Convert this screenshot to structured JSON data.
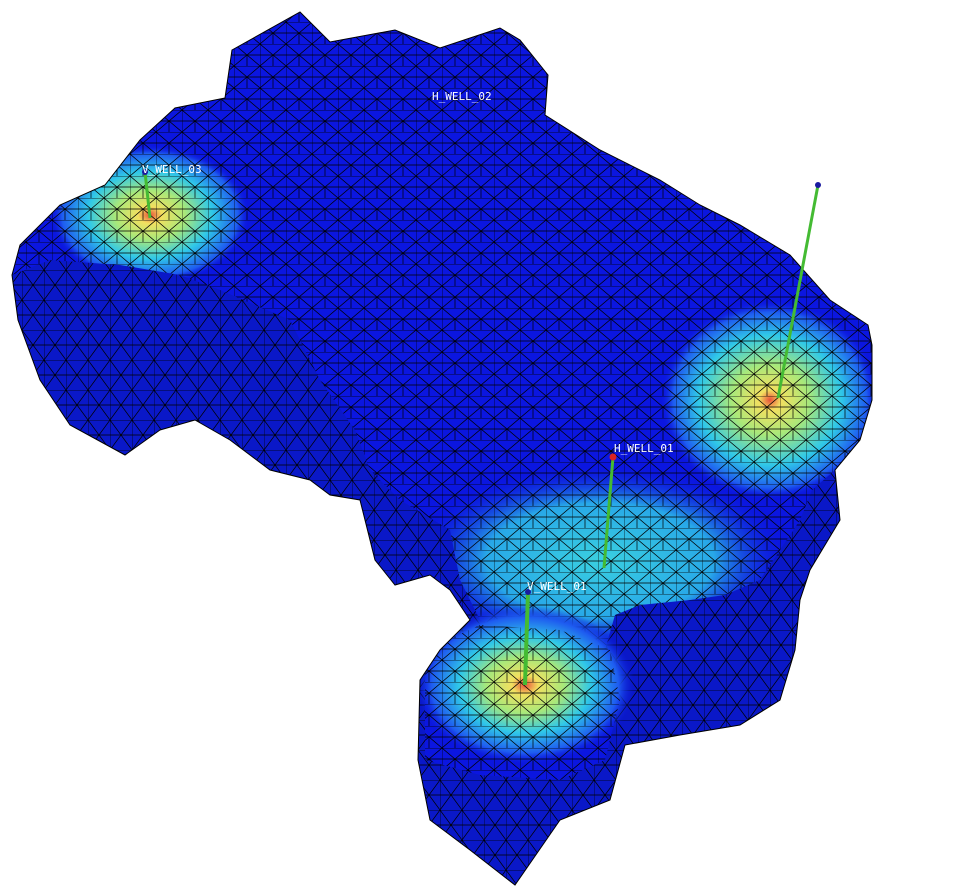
{
  "scene": {
    "background_color": "#ffffff",
    "mesh_edge_color": "#000000",
    "colormap": [
      "#0a14d8",
      "#1e5cf0",
      "#30c8e8",
      "#a8e87a",
      "#f2e060",
      "#e8503a"
    ],
    "well_trajectory_color": "#44bb33",
    "well_head_color_vertical": "#1a1aa0",
    "well_head_color_horizontal": "#dd2222",
    "label_color": "#ffffff"
  },
  "wells": [
    {
      "id": "h_well_02",
      "label": "H_WELL_02",
      "icon": "horizontal-well-marker"
    },
    {
      "id": "v_well_03",
      "label": "V_WELL_03",
      "icon": "vertical-well-marker"
    },
    {
      "id": "h_well_01",
      "label": "H_WELL_01",
      "icon": "horizontal-well-marker"
    },
    {
      "id": "v_well_01",
      "label": "V_WELL_01",
      "icon": "vertical-well-marker"
    },
    {
      "id": "unlabeled_well_east",
      "label": "",
      "icon": "vertical-well-marker"
    }
  ]
}
